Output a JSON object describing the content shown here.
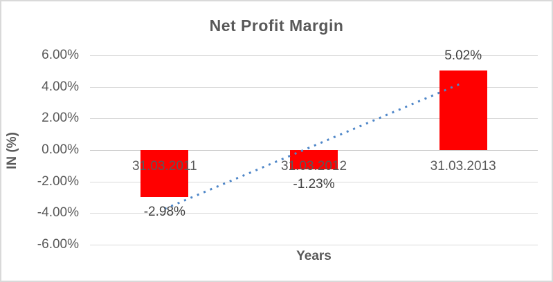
{
  "chart_data": {
    "type": "bar",
    "title": "Net Profit Margin",
    "xlabel": "Years",
    "ylabel": "IN (%)",
    "categories": [
      "31.03.2011",
      "31.03.2012",
      "31.03.2013"
    ],
    "values": [
      -2.98,
      -1.23,
      5.02
    ],
    "data_labels": [
      "-2.98%",
      "-1.23%",
      "5.02%"
    ],
    "ylim": [
      -6,
      6
    ],
    "ytick_step": 2,
    "ytick_labels": [
      "6.00%",
      "4.00%",
      "2.00%",
      "0.00%",
      "-2.00%",
      "-4.00%",
      "-6.00%"
    ],
    "grid": true,
    "legend": "none",
    "bar_color": "#ff0000",
    "gridline_color": "#d9d9d9",
    "axis_text_color": "#595959",
    "data_label_color": "#404040",
    "trendline": {
      "type": "linear",
      "style": "dotted",
      "color": "#4e86c8"
    }
  }
}
